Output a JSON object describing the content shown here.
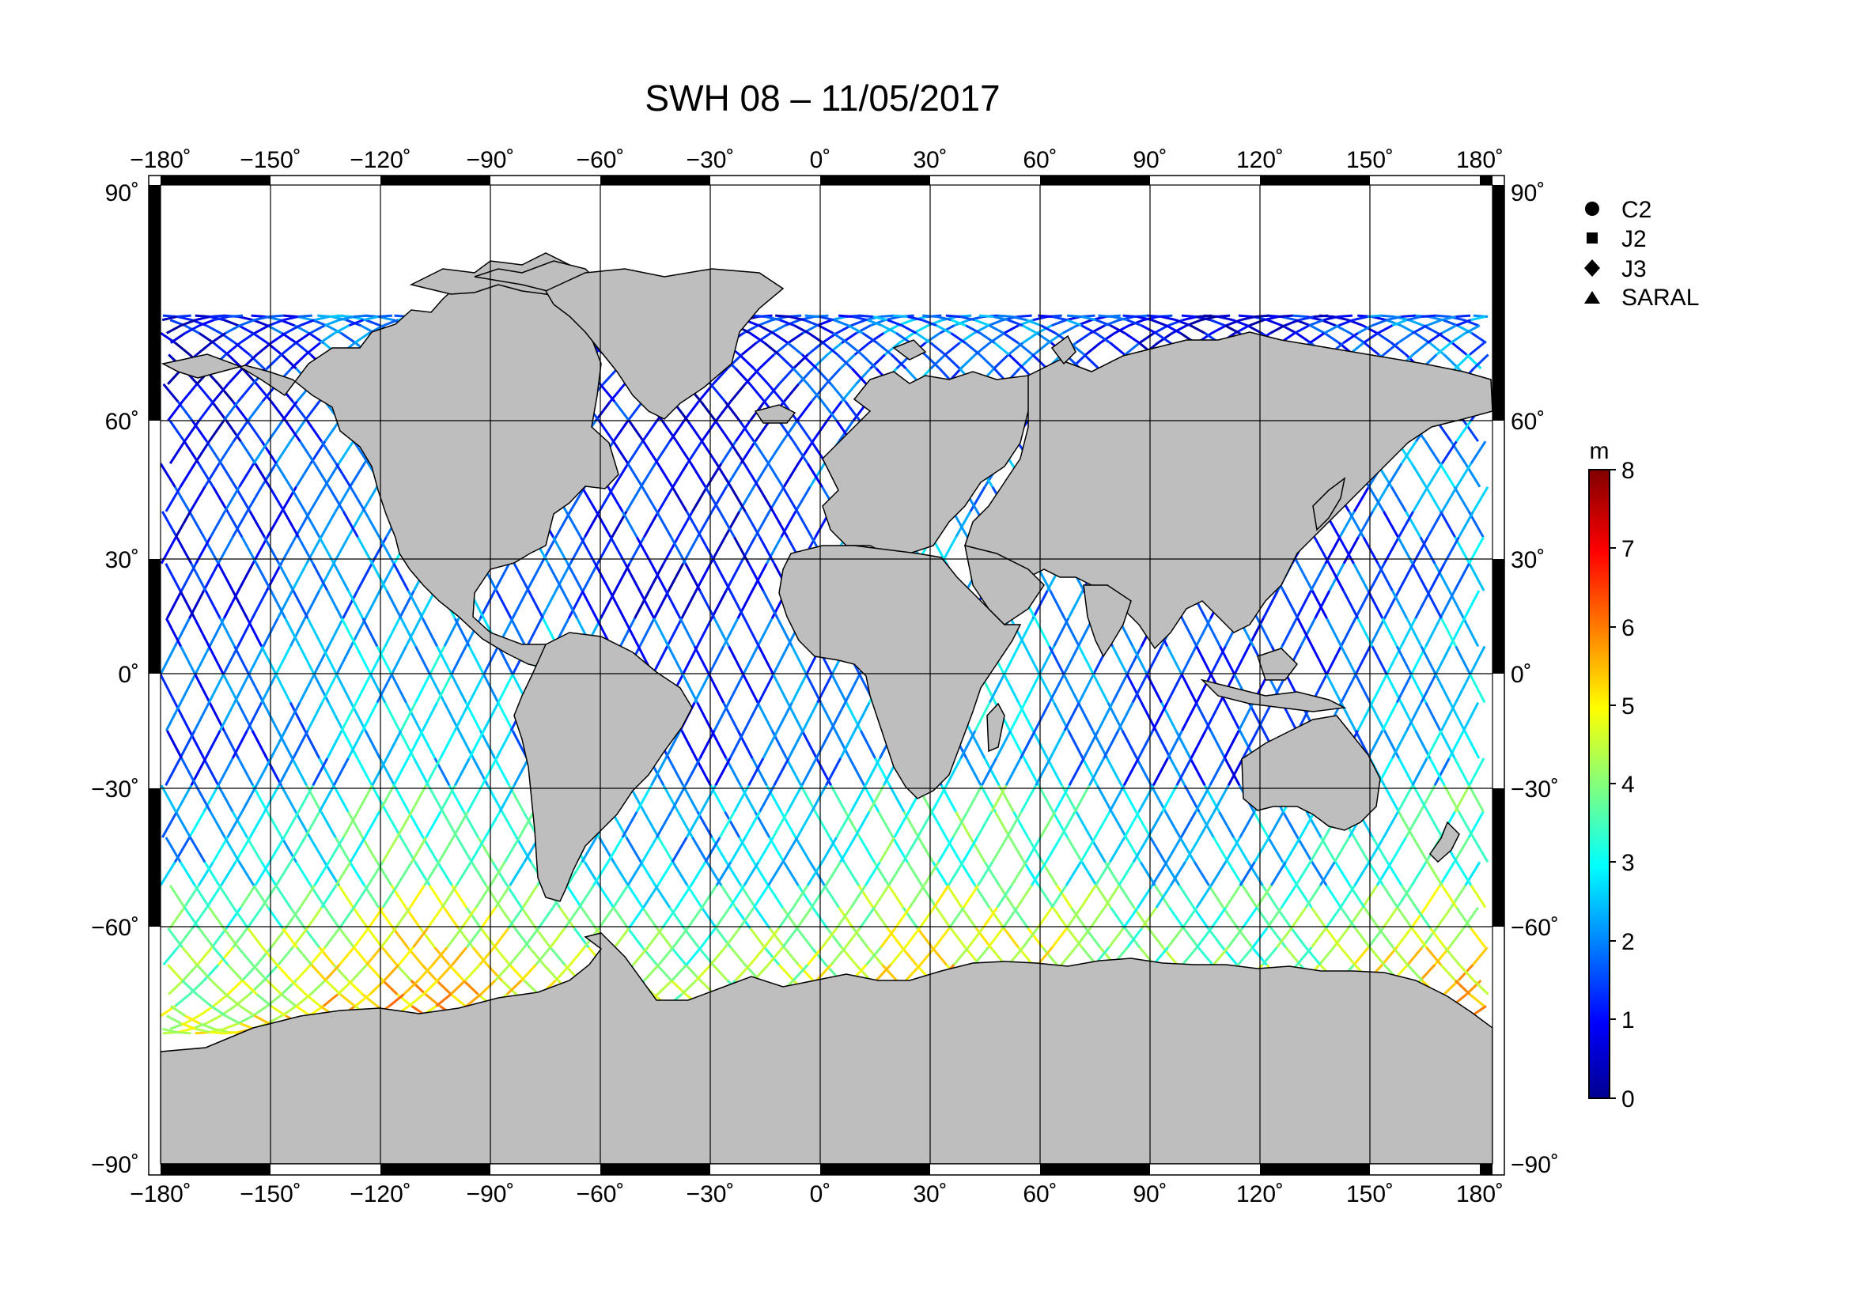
{
  "title": "SWH 08 – 11/05/2017",
  "map": {
    "lon_ticks": [
      "−180˚",
      "−150˚",
      "−120˚",
      "−90˚",
      "−60˚",
      "−30˚",
      "0˚",
      "30˚",
      "60˚",
      "90˚",
      "120˚",
      "150˚",
      "180˚"
    ],
    "lat_ticks": [
      "90˚",
      "60˚",
      "30˚",
      "0˚",
      "−30˚",
      "−60˚",
      "−90˚"
    ],
    "lon_range": [
      -180,
      180
    ],
    "lat_range": [
      -90,
      90
    ],
    "grid": true,
    "land_color": "#bebebe",
    "coast_color": "#000000"
  },
  "legend": {
    "items": [
      {
        "label": "C2",
        "marker": "circle"
      },
      {
        "label": "J2",
        "marker": "square"
      },
      {
        "label": "J3",
        "marker": "diamond"
      },
      {
        "label": "SARAL",
        "marker": "triangle"
      }
    ],
    "placement": "right"
  },
  "colorbar": {
    "unit": "m",
    "min": 0,
    "max": 8,
    "tick_labels": [
      "0",
      "1",
      "2",
      "3",
      "4",
      "5",
      "6",
      "7",
      "8"
    ],
    "colormap": [
      "#00008f",
      "#0000ff",
      "#00ffff",
      "#ffff00",
      "#ff0000",
      "#800000"
    ]
  }
}
